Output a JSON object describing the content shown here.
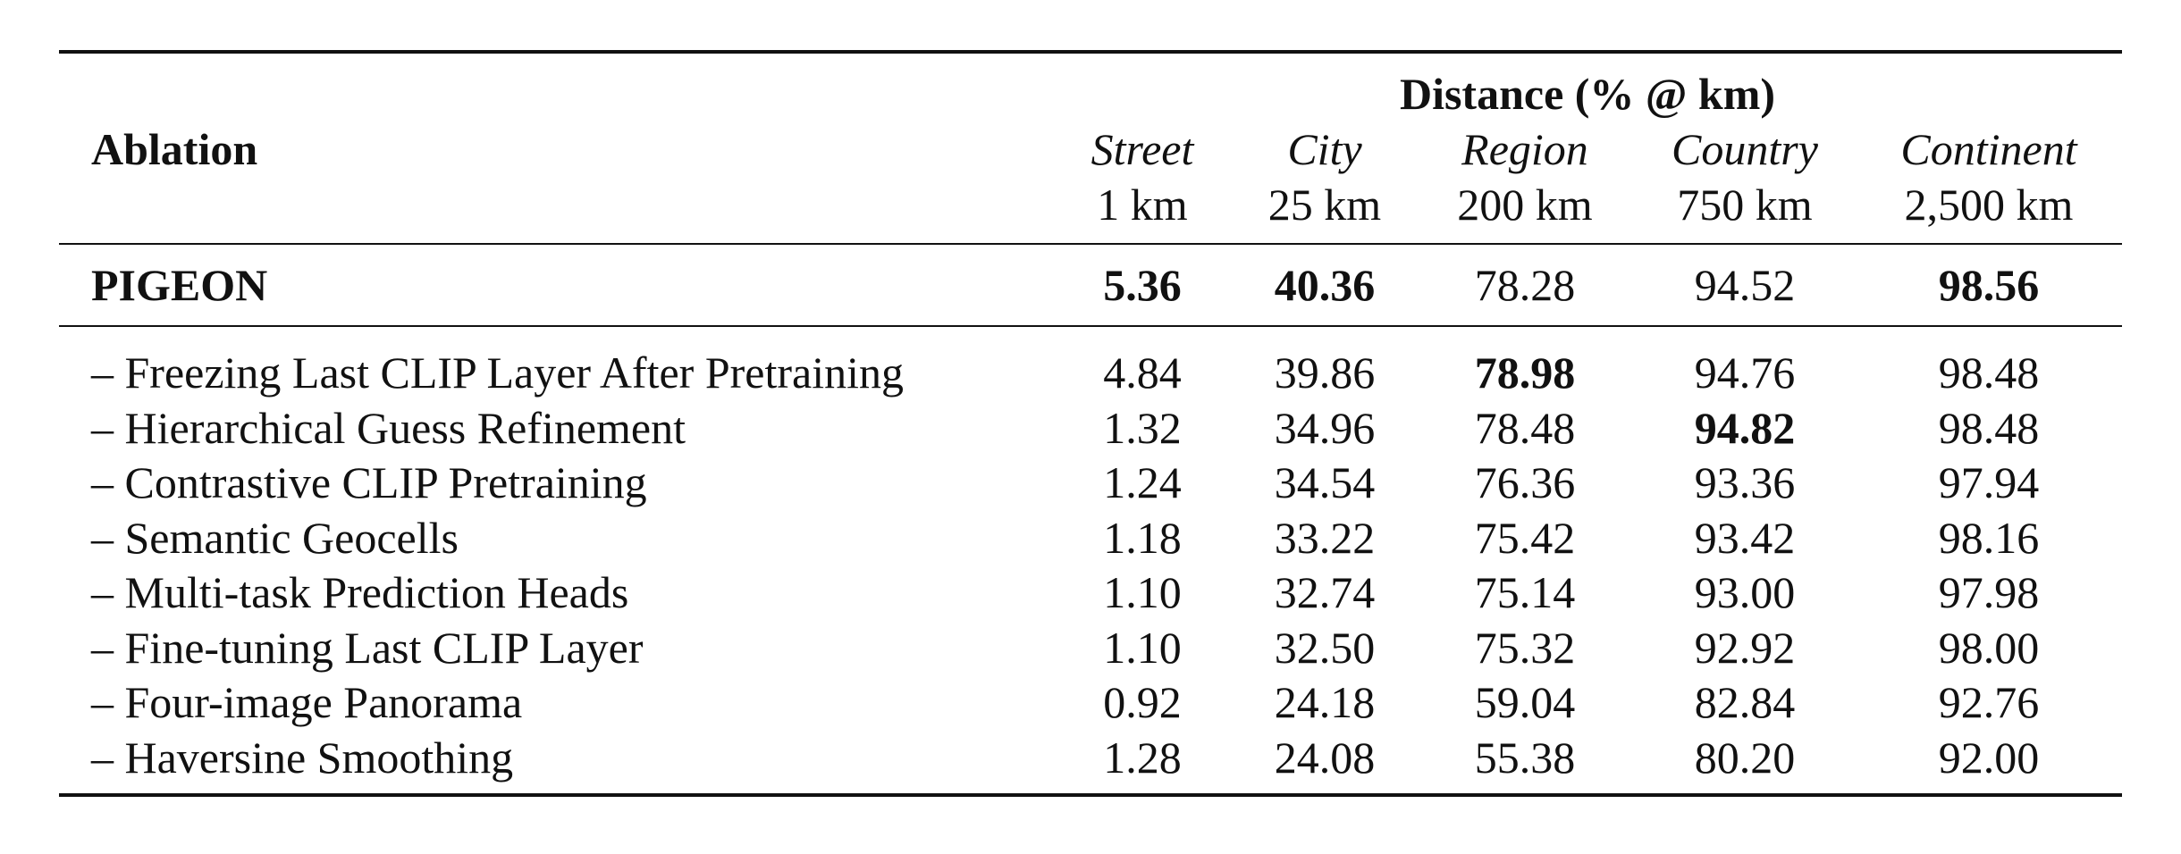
{
  "table": {
    "header": {
      "ablation_label": "Ablation",
      "group_label": "Distance (% @ km)",
      "columns": [
        {
          "name": "Street",
          "threshold": "1 km"
        },
        {
          "name": "City",
          "threshold": "25 km"
        },
        {
          "name": "Region",
          "threshold": "200 km"
        },
        {
          "name": "Country",
          "threshold": "750 km"
        },
        {
          "name": "Continent",
          "threshold": "2,500 km"
        }
      ]
    },
    "baseline": {
      "label": "PIGEON",
      "values": [
        "5.36",
        "40.36",
        "78.28",
        "94.52",
        "98.56"
      ],
      "bold": [
        true,
        true,
        false,
        false,
        true
      ]
    },
    "rows": [
      {
        "label": "– Freezing Last CLIP Layer After Pretraining",
        "values": [
          "4.84",
          "39.86",
          "78.98",
          "94.76",
          "98.48"
        ],
        "bold": [
          false,
          false,
          true,
          false,
          false
        ]
      },
      {
        "label": "– Hierarchical Guess Refinement",
        "values": [
          "1.32",
          "34.96",
          "78.48",
          "94.82",
          "98.48"
        ],
        "bold": [
          false,
          false,
          false,
          true,
          false
        ]
      },
      {
        "label": "– Contrastive CLIP Pretraining",
        "values": [
          "1.24",
          "34.54",
          "76.36",
          "93.36",
          "97.94"
        ],
        "bold": [
          false,
          false,
          false,
          false,
          false
        ]
      },
      {
        "label": "– Semantic Geocells",
        "values": [
          "1.18",
          "33.22",
          "75.42",
          "93.42",
          "98.16"
        ],
        "bold": [
          false,
          false,
          false,
          false,
          false
        ]
      },
      {
        "label": "– Multi-task Prediction Heads",
        "values": [
          "1.10",
          "32.74",
          "75.14",
          "93.00",
          "97.98"
        ],
        "bold": [
          false,
          false,
          false,
          false,
          false
        ]
      },
      {
        "label": "– Fine-tuning Last CLIP Layer",
        "values": [
          "1.10",
          "32.50",
          "75.32",
          "92.92",
          "98.00"
        ],
        "bold": [
          false,
          false,
          false,
          false,
          false
        ]
      },
      {
        "label": "– Four-image Panorama",
        "values": [
          "0.92",
          "24.18",
          "59.04",
          "82.84",
          "92.76"
        ],
        "bold": [
          false,
          false,
          false,
          false,
          false
        ]
      },
      {
        "label": "– Haversine Smoothing",
        "values": [
          "1.28",
          "24.08",
          "55.38",
          "80.20",
          "92.00"
        ],
        "bold": [
          false,
          false,
          false,
          false,
          false
        ]
      }
    ]
  }
}
